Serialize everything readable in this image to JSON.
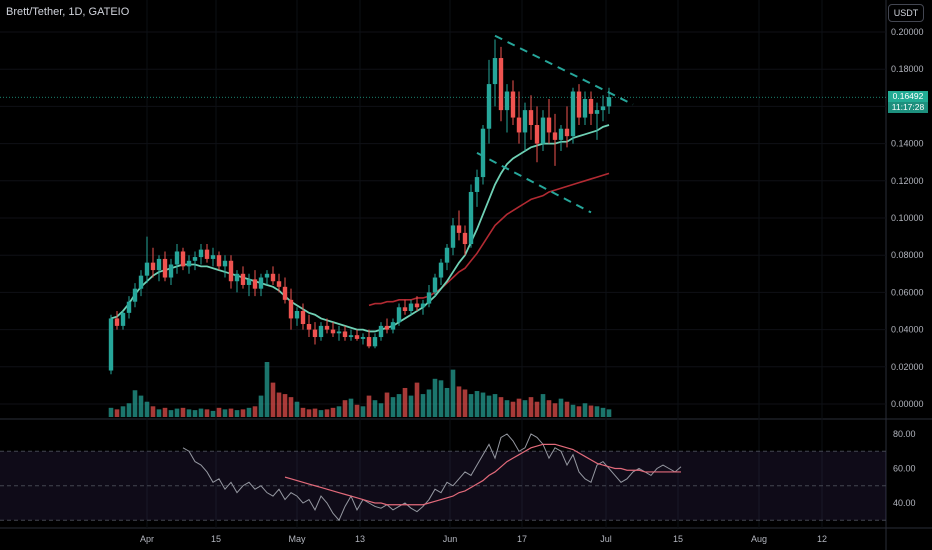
{
  "header": {
    "title": "Brett/Tether, 1D, GATEIO",
    "currency": "USDT"
  },
  "price_tag": {
    "value": "0.16492",
    "countdown": "11:17:28"
  },
  "colors": {
    "up": "#26a69a",
    "down": "#ef5350",
    "ema_fast": "#6fd1b5",
    "ema_slow": "#b22a32",
    "rsi": "#9598a1",
    "rsi_ma": "#e26a7a",
    "trendline": "#26a69a",
    "price_line": "#22ab94"
  },
  "chart_data": [
    {
      "type": "candlestick",
      "title": "Brett/Tether, 1D, GATEIO",
      "y_ticks": [
        "0.20000",
        "0.18000",
        "0.16000",
        "0.14000",
        "0.12000",
        "0.10000",
        "0.08000",
        "0.06000",
        "0.04000",
        "0.02000",
        "0.00000"
      ],
      "x_ticks": [
        "Apr",
        "15",
        "May",
        "13",
        "Jun",
        "17",
        "Jul",
        "15",
        "Aug",
        "12"
      ],
      "ylim": [
        0,
        0.205
      ],
      "current_price": 0.16492,
      "ohlc": [
        [
          0.018,
          0.048,
          0.016,
          0.046
        ],
        [
          0.046,
          0.05,
          0.04,
          0.042
        ],
        [
          0.042,
          0.05,
          0.04,
          0.049
        ],
        [
          0.049,
          0.058,
          0.046,
          0.055
        ],
        [
          0.055,
          0.065,
          0.052,
          0.062
        ],
        [
          0.062,
          0.072,
          0.058,
          0.069
        ],
        [
          0.069,
          0.09,
          0.065,
          0.076
        ],
        [
          0.076,
          0.084,
          0.068,
          0.072
        ],
        [
          0.072,
          0.08,
          0.066,
          0.078
        ],
        [
          0.078,
          0.082,
          0.066,
          0.068
        ],
        [
          0.068,
          0.078,
          0.064,
          0.075
        ],
        [
          0.075,
          0.086,
          0.07,
          0.082
        ],
        [
          0.082,
          0.084,
          0.072,
          0.074
        ],
        [
          0.074,
          0.08,
          0.07,
          0.077
        ],
        [
          0.077,
          0.082,
          0.072,
          0.079
        ],
        [
          0.079,
          0.086,
          0.075,
          0.083
        ],
        [
          0.083,
          0.086,
          0.076,
          0.078
        ],
        [
          0.078,
          0.084,
          0.074,
          0.08
        ],
        [
          0.08,
          0.082,
          0.072,
          0.074
        ],
        [
          0.074,
          0.08,
          0.068,
          0.077
        ],
        [
          0.077,
          0.08,
          0.062,
          0.066
        ],
        [
          0.066,
          0.072,
          0.06,
          0.07
        ],
        [
          0.07,
          0.074,
          0.062,
          0.064
        ],
        [
          0.064,
          0.07,
          0.058,
          0.067
        ],
        [
          0.067,
          0.072,
          0.058,
          0.062
        ],
        [
          0.062,
          0.07,
          0.058,
          0.068
        ],
        [
          0.068,
          0.072,
          0.064,
          0.07
        ],
        [
          0.07,
          0.074,
          0.064,
          0.066
        ],
        [
          0.066,
          0.07,
          0.06,
          0.063
        ],
        [
          0.063,
          0.068,
          0.054,
          0.056
        ],
        [
          0.056,
          0.062,
          0.04,
          0.046
        ],
        [
          0.046,
          0.052,
          0.042,
          0.05
        ],
        [
          0.05,
          0.054,
          0.04,
          0.043
        ],
        [
          0.043,
          0.048,
          0.036,
          0.04
        ],
        [
          0.04,
          0.044,
          0.032,
          0.036
        ],
        [
          0.036,
          0.044,
          0.034,
          0.042
        ],
        [
          0.042,
          0.046,
          0.038,
          0.04
        ],
        [
          0.04,
          0.044,
          0.036,
          0.038
        ],
        [
          0.038,
          0.042,
          0.034,
          0.039
        ],
        [
          0.039,
          0.042,
          0.034,
          0.036
        ],
        [
          0.036,
          0.04,
          0.034,
          0.037
        ],
        [
          0.037,
          0.04,
          0.034,
          0.035
        ],
        [
          0.035,
          0.038,
          0.032,
          0.036
        ],
        [
          0.036,
          0.04,
          0.03,
          0.031
        ],
        [
          0.031,
          0.038,
          0.03,
          0.036
        ],
        [
          0.036,
          0.044,
          0.034,
          0.042
        ],
        [
          0.042,
          0.046,
          0.038,
          0.04
        ],
        [
          0.04,
          0.046,
          0.038,
          0.044
        ],
        [
          0.044,
          0.054,
          0.042,
          0.052
        ],
        [
          0.052,
          0.056,
          0.048,
          0.05
        ],
        [
          0.05,
          0.056,
          0.048,
          0.054
        ],
        [
          0.054,
          0.058,
          0.05,
          0.052
        ],
        [
          0.052,
          0.056,
          0.048,
          0.054
        ],
        [
          0.054,
          0.064,
          0.052,
          0.06
        ],
        [
          0.06,
          0.07,
          0.058,
          0.068
        ],
        [
          0.068,
          0.078,
          0.064,
          0.076
        ],
        [
          0.076,
          0.086,
          0.072,
          0.084
        ],
        [
          0.084,
          0.1,
          0.08,
          0.096
        ],
        [
          0.096,
          0.104,
          0.088,
          0.092
        ],
        [
          0.092,
          0.096,
          0.08,
          0.086
        ],
        [
          0.086,
          0.118,
          0.084,
          0.114
        ],
        [
          0.114,
          0.126,
          0.106,
          0.122
        ],
        [
          0.122,
          0.15,
          0.118,
          0.148
        ],
        [
          0.148,
          0.185,
          0.14,
          0.172
        ],
        [
          0.172,
          0.196,
          0.16,
          0.186
        ],
        [
          0.186,
          0.192,
          0.152,
          0.158
        ],
        [
          0.158,
          0.172,
          0.146,
          0.168
        ],
        [
          0.168,
          0.174,
          0.15,
          0.154
        ],
        [
          0.154,
          0.168,
          0.14,
          0.146
        ],
        [
          0.146,
          0.162,
          0.136,
          0.158
        ],
        [
          0.158,
          0.166,
          0.142,
          0.15
        ],
        [
          0.15,
          0.16,
          0.13,
          0.14
        ],
        [
          0.14,
          0.158,
          0.136,
          0.154
        ],
        [
          0.154,
          0.164,
          0.14,
          0.146
        ],
        [
          0.146,
          0.156,
          0.128,
          0.142
        ],
        [
          0.142,
          0.15,
          0.136,
          0.148
        ],
        [
          0.148,
          0.16,
          0.138,
          0.144
        ],
        [
          0.144,
          0.17,
          0.14,
          0.168
        ],
        [
          0.168,
          0.172,
          0.15,
          0.154
        ],
        [
          0.154,
          0.168,
          0.15,
          0.164
        ],
        [
          0.164,
          0.168,
          0.15,
          0.156
        ],
        [
          0.156,
          0.162,
          0.142,
          0.158
        ],
        [
          0.158,
          0.166,
          0.152,
          0.16
        ],
        [
          0.16,
          0.17,
          0.156,
          0.165
        ]
      ],
      "volume": [
        12,
        10,
        14,
        18,
        35,
        28,
        20,
        14,
        10,
        12,
        9,
        11,
        12,
        10,
        9,
        11,
        10,
        8,
        12,
        10,
        11,
        9,
        10,
        12,
        14,
        28,
        72,
        45,
        32,
        30,
        26,
        20,
        12,
        10,
        11,
        9,
        10,
        12,
        14,
        22,
        24,
        16,
        14,
        28,
        22,
        18,
        32,
        26,
        30,
        38,
        28,
        45,
        30,
        36,
        50,
        48,
        38,
        62,
        40,
        36,
        30,
        34,
        32,
        28,
        30,
        26,
        22,
        20,
        24,
        22,
        26,
        20,
        30,
        22,
        18,
        24,
        20,
        16,
        14,
        18,
        15,
        14,
        12,
        10
      ],
      "ema_fast": [
        0.046,
        0.047,
        0.05,
        0.054,
        0.059,
        0.063,
        0.066,
        0.069,
        0.071,
        0.072,
        0.073,
        0.074,
        0.075,
        0.075,
        0.075,
        0.074,
        0.074,
        0.073,
        0.072,
        0.071,
        0.07,
        0.069,
        0.068,
        0.067,
        0.066,
        0.065,
        0.064,
        0.063,
        0.061,
        0.058,
        0.055,
        0.053,
        0.051,
        0.049,
        0.048,
        0.046,
        0.045,
        0.044,
        0.043,
        0.042,
        0.041,
        0.04,
        0.04,
        0.039,
        0.039,
        0.04,
        0.041,
        0.042,
        0.044,
        0.046,
        0.048,
        0.05,
        0.052,
        0.055,
        0.058,
        0.062,
        0.066,
        0.071,
        0.076,
        0.08,
        0.087,
        0.094,
        0.102,
        0.11,
        0.118,
        0.124,
        0.129,
        0.132,
        0.134,
        0.136,
        0.138,
        0.139,
        0.14,
        0.14,
        0.14,
        0.141,
        0.141,
        0.143,
        0.144,
        0.145,
        0.146,
        0.147,
        0.149,
        0.15
      ],
      "ema_slow": [
        null,
        null,
        null,
        null,
        null,
        null,
        null,
        null,
        null,
        null,
        null,
        null,
        null,
        null,
        null,
        null,
        null,
        null,
        null,
        null,
        null,
        null,
        null,
        null,
        null,
        null,
        null,
        null,
        null,
        null,
        null,
        null,
        null,
        null,
        null,
        null,
        null,
        null,
        null,
        null,
        null,
        null,
        null,
        0.053,
        0.054,
        0.054,
        0.055,
        0.055,
        0.056,
        0.056,
        0.056,
        0.057,
        0.057,
        0.058,
        0.06,
        0.062,
        0.065,
        0.068,
        0.071,
        0.073,
        0.077,
        0.081,
        0.086,
        0.091,
        0.096,
        0.099,
        0.102,
        0.104,
        0.106,
        0.108,
        0.11,
        0.111,
        0.112,
        0.114,
        0.115,
        0.116,
        0.117,
        0.118,
        0.119,
        0.12,
        0.121,
        0.122,
        0.123,
        0.124
      ],
      "trendlines": [
        {
          "from": [
            64,
            0.198
          ],
          "to": [
            87,
            0.161
          ],
          "style": "dashed"
        },
        {
          "from": [
            61,
            0.135
          ],
          "to": [
            80,
            0.103
          ],
          "style": "dashed"
        }
      ]
    },
    {
      "type": "line",
      "y_ticks": [
        "80.00",
        "60.00",
        "40.00"
      ],
      "ylim": [
        30,
        88
      ],
      "band": [
        30,
        70
      ],
      "rsi": [
        72,
        70,
        64,
        62,
        58,
        52,
        54,
        48,
        52,
        46,
        50,
        52,
        48,
        50,
        46,
        44,
        48,
        42,
        46,
        44,
        40,
        42,
        36,
        44,
        40,
        34,
        30,
        38,
        44,
        36,
        42,
        40,
        38,
        37,
        39,
        36,
        38,
        40,
        37,
        35,
        38,
        42,
        48,
        46,
        52,
        50,
        54,
        58,
        56,
        62,
        68,
        74,
        66,
        78,
        80,
        76,
        70,
        72,
        80,
        78,
        74,
        66,
        72,
        70,
        62,
        68,
        58,
        54,
        52,
        62,
        64,
        60,
        56,
        52,
        54,
        58,
        60,
        58,
        56,
        60,
        62,
        60,
        58,
        61
      ],
      "rsi_ma": [
        null,
        null,
        null,
        null,
        null,
        null,
        null,
        null,
        null,
        null,
        null,
        null,
        null,
        null,
        null,
        null,
        null,
        55,
        54,
        53,
        52,
        51,
        50,
        49,
        48,
        47,
        46,
        45,
        44,
        43,
        42,
        41,
        40,
        40,
        39,
        39,
        39,
        39,
        39,
        39,
        39,
        40,
        41,
        42,
        43,
        44,
        46,
        47,
        49,
        51,
        53,
        56,
        58,
        61,
        64,
        66,
        68,
        70,
        72,
        73,
        74,
        74,
        74,
        73,
        72,
        71,
        69,
        67,
        65,
        63,
        62,
        61,
        60,
        60,
        59,
        59,
        59,
        58,
        58,
        58,
        58,
        58,
        58,
        58
      ]
    }
  ]
}
